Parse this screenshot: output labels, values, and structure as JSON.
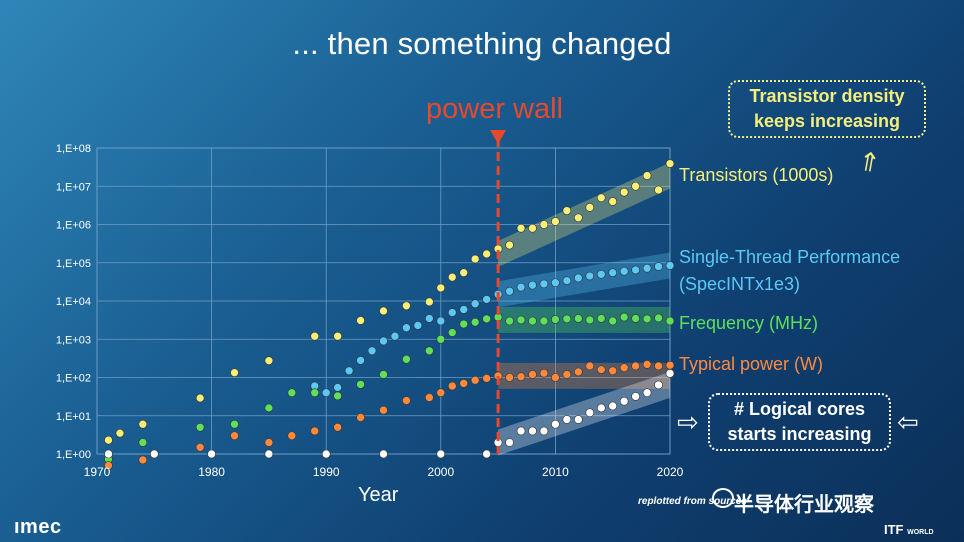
{
  "title": "... then something changed",
  "power_wall": {
    "label": "power wall",
    "year": 2005,
    "color": "#e8482c"
  },
  "callouts": {
    "transistor_density": "Transistor density keeps increasing",
    "logical_cores": "# Logical cores starts increasing"
  },
  "source_note": "replotted from sources",
  "watermark": "半导体行业观察",
  "logos": {
    "imec": "ımec",
    "itf": "ITF",
    "itf_sub": "WORLD"
  },
  "colors": {
    "transistors": "#f7ef78",
    "single_thread": "#5cc8f5",
    "frequency": "#5ee05a",
    "power": "#ff8a3d",
    "cores": "#ffffff",
    "wall": "#e8482c"
  },
  "chart_data": {
    "type": "scatter",
    "title": "... then something changed",
    "xlabel": "Year",
    "ylabel": "",
    "yscale": "log",
    "xlim": [
      1970,
      2020
    ],
    "ylim": [
      1,
      100000000
    ],
    "x_ticks": [
      1970,
      1980,
      1990,
      2000,
      2010,
      2020
    ],
    "y_ticks": [
      "1,E+00",
      "1,E+01",
      "1,E+02",
      "1,E+03",
      "1,E+04",
      "1,E+05",
      "1,E+06",
      "1,E+07",
      "1,E+08"
    ],
    "grid": true,
    "series": [
      {
        "name": "Transistors (1000s)",
        "key": "transistors",
        "x": [
          1971,
          1972,
          1974,
          1979,
          1982,
          1985,
          1989,
          1991,
          1993,
          1995,
          1997,
          1999,
          2000,
          2001,
          2002,
          2003,
          2004,
          2005,
          2006,
          2007,
          2008,
          2009,
          2010,
          2011,
          2012,
          2013,
          2014,
          2015,
          2016,
          2017,
          2018,
          2019,
          2020
        ],
        "y": [
          2.3,
          3.5,
          6,
          29,
          134,
          275,
          1200,
          1200,
          3100,
          5500,
          7500,
          9500,
          22000,
          42000,
          55000,
          125000,
          170000,
          230000,
          290000,
          800000,
          800000,
          1000000,
          1200000,
          2300000,
          1500000,
          2800000,
          5000000,
          4000000,
          7000000,
          10000000,
          19000000,
          8000000,
          39000000
        ],
        "band": {
          "x": [
            2005,
            2020
          ],
          "y": [
            170000,
            19000000
          ]
        }
      },
      {
        "name": "Single-Thread Performance (SpecINTx1e3)",
        "key": "single_thread",
        "x": [
          1989,
          1990,
          1991,
          1992,
          1993,
          1994,
          1995,
          1996,
          1997,
          1998,
          1999,
          2000,
          2001,
          2002,
          2003,
          2004,
          2005,
          2006,
          2007,
          2008,
          2009,
          2010,
          2011,
          2012,
          2013,
          2014,
          2015,
          2016,
          2017,
          2018,
          2019,
          2020
        ],
        "y": [
          60,
          40,
          55,
          150,
          280,
          500,
          900,
          1200,
          2000,
          2300,
          3500,
          3000,
          5000,
          6000,
          8500,
          11000,
          15000,
          18000,
          23000,
          26000,
          28000,
          30000,
          34000,
          40000,
          45000,
          50000,
          55000,
          60000,
          65000,
          72000,
          80000,
          85000
        ],
        "band": {
          "x": [
            2005,
            2020
          ],
          "y": [
            15000,
            85000
          ]
        }
      },
      {
        "name": "Frequency (MHz)",
        "key": "frequency",
        "x": [
          1971,
          1974,
          1979,
          1982,
          1985,
          1987,
          1989,
          1991,
          1993,
          1995,
          1997,
          1999,
          2000,
          2001,
          2002,
          2003,
          2004,
          2005,
          2006,
          2007,
          2008,
          2009,
          2010,
          2011,
          2012,
          2013,
          2014,
          2015,
          2016,
          2017,
          2018,
          2019,
          2020
        ],
        "y": [
          0.74,
          2,
          5,
          6,
          16,
          40,
          40,
          33,
          66,
          120,
          300,
          500,
          1000,
          1500,
          2500,
          2800,
          3400,
          3800,
          3000,
          3200,
          3000,
          3000,
          3300,
          3400,
          3500,
          3200,
          3500,
          3000,
          3800,
          3500,
          3400,
          3600,
          3000
        ],
        "band": {
          "x": [
            2005,
            2020
          ],
          "y": [
            3200,
            3200
          ]
        }
      },
      {
        "name": "Typical power (W)",
        "key": "power",
        "x": [
          1971,
          1974,
          1979,
          1982,
          1985,
          1987,
          1989,
          1991,
          1993,
          1995,
          1997,
          1999,
          2000,
          2001,
          2002,
          2003,
          2004,
          2005,
          2006,
          2007,
          2008,
          2009,
          2010,
          2011,
          2012,
          2013,
          2014,
          2015,
          2016,
          2017,
          2018,
          2019,
          2020
        ],
        "y": [
          0.5,
          0.7,
          1.5,
          3,
          2,
          3,
          4,
          5,
          9,
          14,
          25,
          30,
          40,
          60,
          70,
          85,
          95,
          110,
          100,
          105,
          120,
          130,
          100,
          120,
          140,
          200,
          160,
          150,
          180,
          200,
          220,
          200,
          210
        ],
        "band": {
          "x": [
            2005,
            2020
          ],
          "y": [
            110,
            110
          ]
        }
      },
      {
        "name": "Number of Logical Cores",
        "key": "cores",
        "x": [
          1971,
          1975,
          1980,
          1985,
          1990,
          1995,
          2000,
          2004,
          2005,
          2006,
          2007,
          2008,
          2009,
          2010,
          2011,
          2012,
          2013,
          2014,
          2015,
          2016,
          2017,
          2018,
          2019,
          2020
        ],
        "y": [
          1,
          1,
          1,
          1,
          1,
          1,
          1,
          1,
          2,
          2,
          4,
          4,
          4,
          6,
          8,
          8,
          12,
          16,
          18,
          24,
          32,
          40,
          64,
          128
        ],
        "band": {
          "x": [
            2005,
            2020
          ],
          "y": [
            2,
            64
          ]
        }
      }
    ]
  }
}
